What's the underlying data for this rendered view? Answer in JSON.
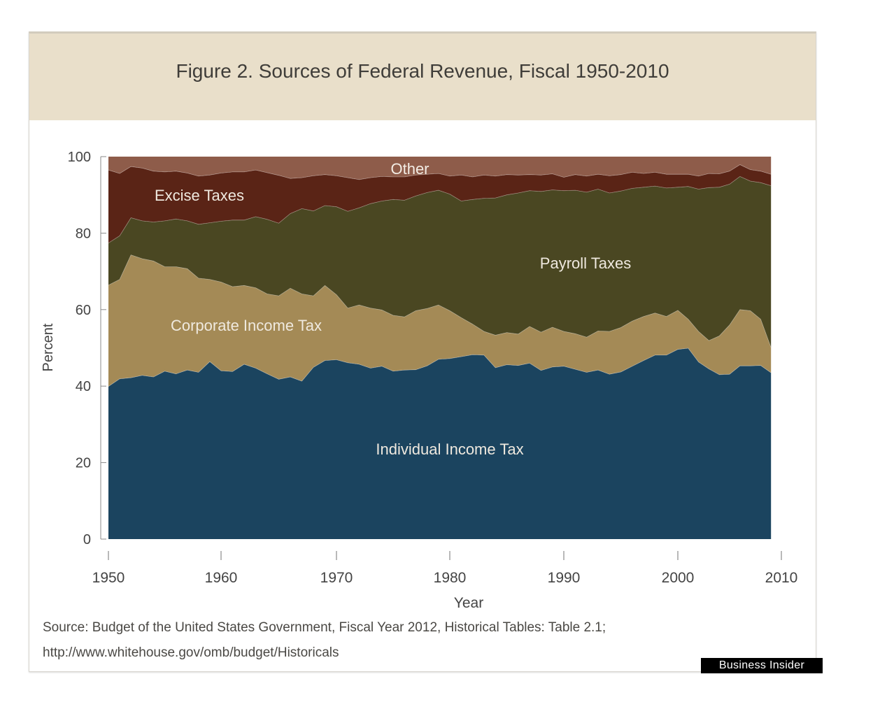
{
  "title": "Figure 2. Sources of Federal Revenue, Fiscal 1950-2010",
  "source_line1": "Source: Budget of the United States Government, Fiscal Year 2012, Historical Tables: Table 2.1;",
  "source_line2": "http://www.whitehouse.gov/omb/budget/Historicals",
  "credit": "Business Insider",
  "colors": {
    "individual": "#1b445f",
    "corporate": "#a48a56",
    "payroll": "#4a4722",
    "excise": "#5a2416",
    "other": "#8e5c4a",
    "header_bg": "#e9dfca"
  },
  "chart_data": {
    "type": "area",
    "stacked": true,
    "title": "Figure 2. Sources of Federal Revenue, Fiscal 1950-2010",
    "xlabel": "Year",
    "ylabel": "Percent",
    "xlim": [
      1950,
      2009
    ],
    "ylim": [
      0,
      100
    ],
    "x_ticks": [
      1950,
      1960,
      1970,
      1980,
      1990,
      2000,
      2010
    ],
    "y_ticks": [
      0,
      20,
      40,
      60,
      80,
      100
    ],
    "grid": false,
    "x": [
      1950,
      1951,
      1952,
      1953,
      1954,
      1955,
      1956,
      1957,
      1958,
      1959,
      1960,
      1961,
      1962,
      1963,
      1964,
      1965,
      1966,
      1967,
      1968,
      1969,
      1970,
      1971,
      1972,
      1973,
      1974,
      1975,
      1976,
      1977,
      1978,
      1979,
      1980,
      1981,
      1982,
      1983,
      1984,
      1985,
      1986,
      1987,
      1988,
      1989,
      1990,
      1991,
      1992,
      1993,
      1994,
      1995,
      1996,
      1997,
      1998,
      1999,
      2000,
      2001,
      2002,
      2003,
      2004,
      2005,
      2006,
      2007,
      2008,
      2009
    ],
    "series": [
      {
        "name": "Individual Income Tax",
        "label": "Individual Income Tax",
        "values": [
          39.9,
          41.9,
          42.2,
          42.8,
          42.4,
          43.9,
          43.2,
          44.2,
          43.6,
          46.4,
          44.0,
          43.8,
          45.7,
          44.7,
          43.2,
          41.8,
          42.4,
          41.3,
          44.9,
          46.7,
          46.9,
          46.1,
          45.7,
          44.7,
          45.2,
          43.9,
          44.2,
          44.3,
          45.3,
          47.0,
          47.2,
          47.7,
          48.2,
          48.1,
          44.8,
          45.6,
          45.4,
          46.0,
          44.1,
          45.0,
          45.2,
          44.4,
          43.6,
          44.2,
          43.1,
          43.7,
          45.2,
          46.7,
          48.1,
          48.1,
          49.6,
          49.9,
          46.3,
          44.5,
          43.0,
          43.1,
          45.3,
          45.3,
          45.4,
          43.5
        ]
      },
      {
        "name": "Corporate Income Tax",
        "label": "Corporate Income Tax",
        "values": [
          26.5,
          26.0,
          32.1,
          30.5,
          30.3,
          27.3,
          28.0,
          26.5,
          24.6,
          21.5,
          23.2,
          22.2,
          20.6,
          21.0,
          20.9,
          21.8,
          23.2,
          22.8,
          18.7,
          19.6,
          17.0,
          14.3,
          15.5,
          15.7,
          14.7,
          14.6,
          13.9,
          15.4,
          15.0,
          14.2,
          12.5,
          10.2,
          8.0,
          6.2,
          8.5,
          8.4,
          8.2,
          9.6,
          10.0,
          10.4,
          9.1,
          9.3,
          9.2,
          10.2,
          11.2,
          11.6,
          11.8,
          11.5,
          11.0,
          10.1,
          10.2,
          7.6,
          8.0,
          7.4,
          10.1,
          12.9,
          14.7,
          14.4,
          12.1,
          6.6
        ]
      },
      {
        "name": "Payroll Taxes",
        "label": "Payroll Taxes",
        "values": [
          11.0,
          11.4,
          9.7,
          9.9,
          10.2,
          12.0,
          12.5,
          12.5,
          14.1,
          14.8,
          15.9,
          17.4,
          17.1,
          18.6,
          19.5,
          19.0,
          19.5,
          22.3,
          22.2,
          20.9,
          23.0,
          25.3,
          25.4,
          27.3,
          28.5,
          30.3,
          30.5,
          30.0,
          30.3,
          30.0,
          30.5,
          30.5,
          32.6,
          34.8,
          35.9,
          36.0,
          36.9,
          35.5,
          36.8,
          35.9,
          36.8,
          37.5,
          37.9,
          37.1,
          36.2,
          35.7,
          34.7,
          33.8,
          33.2,
          33.6,
          32.2,
          34.7,
          37.2,
          40.0,
          38.9,
          36.8,
          34.8,
          33.9,
          35.7,
          42.3
        ]
      },
      {
        "name": "Excise Taxes",
        "label": "Excise Taxes",
        "values": [
          19.1,
          16.3,
          13.4,
          13.8,
          13.3,
          12.8,
          12.5,
          12.5,
          12.6,
          12.5,
          12.6,
          12.6,
          12.6,
          12.2,
          12.2,
          12.5,
          9.2,
          8.1,
          9.2,
          8.1,
          8.1,
          8.8,
          7.4,
          6.8,
          6.4,
          5.9,
          6.1,
          5.5,
          4.8,
          4.4,
          4.7,
          6.8,
          5.9,
          6.1,
          5.7,
          5.3,
          4.7,
          4.2,
          4.3,
          4.2,
          3.5,
          4.1,
          4.2,
          3.9,
          4.5,
          4.3,
          4.2,
          3.6,
          3.6,
          3.6,
          3.4,
          3.2,
          3.4,
          3.7,
          3.5,
          3.4,
          3.1,
          3.0,
          3.0,
          3.0
        ]
      },
      {
        "name": "Other",
        "label": "Other",
        "values": [
          3.5,
          4.4,
          2.6,
          3.0,
          3.8,
          4.0,
          3.8,
          4.3,
          5.1,
          4.8,
          4.3,
          4.0,
          4.0,
          3.5,
          4.2,
          4.9,
          5.7,
          5.5,
          5.0,
          4.7,
          5.0,
          5.5,
          6.0,
          5.5,
          5.2,
          5.3,
          5.3,
          4.8,
          4.6,
          4.4,
          5.1,
          4.8,
          5.3,
          4.8,
          5.1,
          4.7,
          4.8,
          4.7,
          4.8,
          4.5,
          5.4,
          4.7,
          5.1,
          4.6,
          5.0,
          4.7,
          4.1,
          4.4,
          4.1,
          4.6,
          4.6,
          4.6,
          5.1,
          4.4,
          4.5,
          3.8,
          2.1,
          3.4,
          3.8,
          4.6
        ]
      }
    ]
  }
}
